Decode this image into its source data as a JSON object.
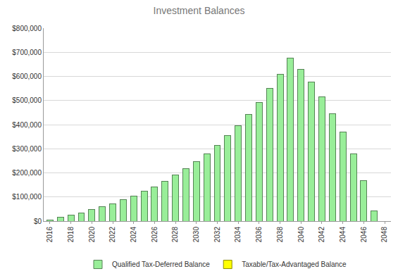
{
  "chart_data": {
    "type": "bar",
    "title": "Investment Balances",
    "categories": [
      "2016",
      null,
      "2018",
      null,
      "2020",
      null,
      "2022",
      null,
      "2024",
      null,
      "2026",
      null,
      "2028",
      null,
      "2030",
      null,
      "2032",
      null,
      "2034",
      null,
      "2036",
      null,
      "2038",
      null,
      "2040",
      null,
      "2042",
      null,
      "2044",
      null,
      "2046",
      null,
      "2048"
    ],
    "series": [
      {
        "name": "Taxable/Tax-Advantaged Balance",
        "color": "#ffff00",
        "values": [
          0,
          0,
          0,
          0,
          0,
          0,
          0,
          0,
          0,
          0,
          0,
          0,
          0,
          0,
          0,
          0,
          0,
          0,
          0,
          0,
          0,
          0,
          0,
          0,
          0,
          0,
          0,
          0,
          0,
          0,
          0,
          0,
          0
        ]
      },
      {
        "name": "Qualified Tax-Deferred Balance",
        "color": "#99ee99",
        "values": [
          5000,
          15000,
          25000,
          35000,
          47000,
          60000,
          73000,
          88000,
          105000,
          123000,
          143000,
          165000,
          190000,
          218000,
          248000,
          280000,
          315000,
          355000,
          397000,
          443000,
          493000,
          550000,
          610000,
          675000,
          630000,
          577000,
          515000,
          445000,
          368000,
          278000,
          167000,
          43000,
          0
        ]
      }
    ],
    "stacked": true,
    "ylim": [
      0,
      800000
    ],
    "yticks": [
      {
        "value": 0,
        "label": "$0"
      },
      {
        "value": 100000,
        "label": "$100,000"
      },
      {
        "value": 200000,
        "label": "$200,000"
      },
      {
        "value": 300000,
        "label": "$300,000"
      },
      {
        "value": 400000,
        "label": "$400,000"
      },
      {
        "value": 500000,
        "label": "$500,000"
      },
      {
        "value": 600000,
        "label": "$600,000"
      },
      {
        "value": 700000,
        "label": "$700,000"
      },
      {
        "value": 800000,
        "label": "$800,000"
      }
    ],
    "grid": true,
    "legend": "bottom"
  }
}
